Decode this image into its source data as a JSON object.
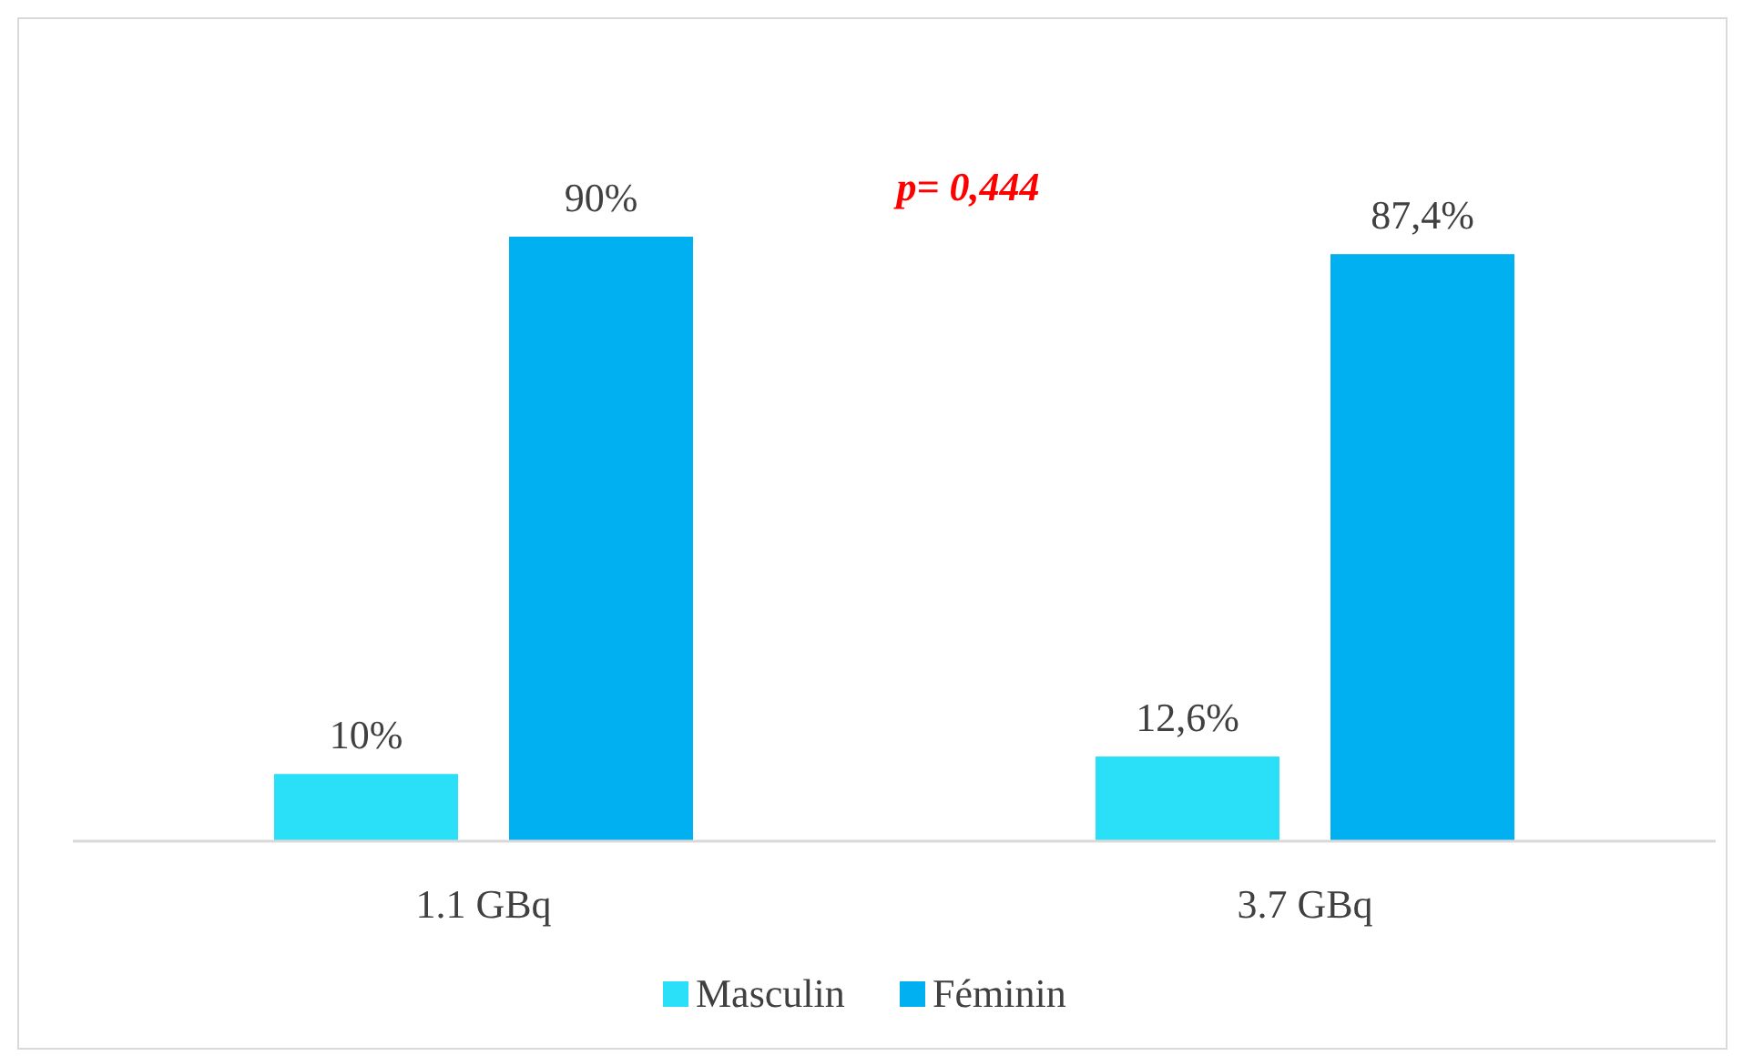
{
  "chart_data": {
    "type": "bar",
    "categories": [
      "1.1 GBq",
      "3.7 GBq"
    ],
    "series": [
      {
        "name": "Masculin",
        "color": "#29e0f8",
        "values": [
          10,
          12.6
        ],
        "value_labels": [
          "10%",
          "12,6%"
        ]
      },
      {
        "name": "Féminin",
        "color": "#00b0f0",
        "values": [
          90,
          87.4
        ],
        "value_labels": [
          "90%",
          "87,4%"
        ]
      }
    ],
    "annotations": [
      "p= 0,444"
    ],
    "legend": "bottom"
  }
}
